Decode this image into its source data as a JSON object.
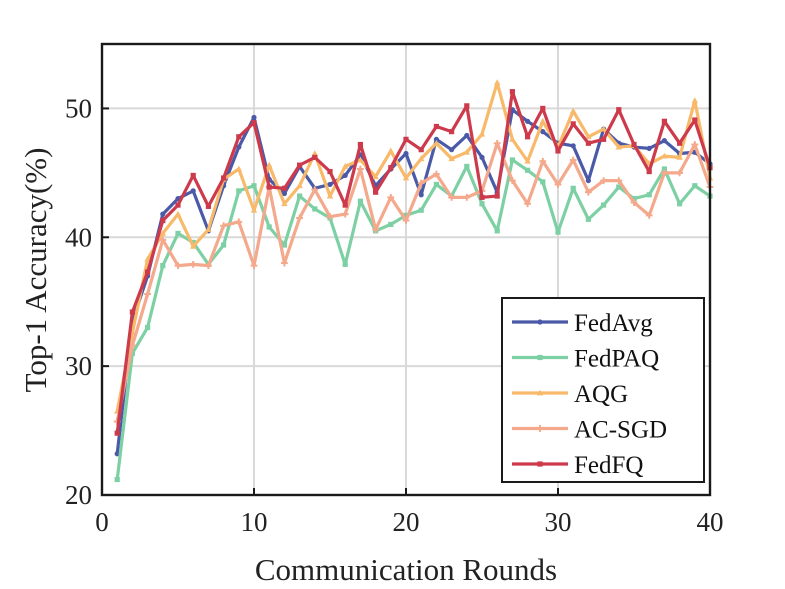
{
  "chart_data": {
    "type": "line",
    "title": "",
    "xlabel": "Communication Rounds",
    "ylabel": "Top-1 Accuracy(%)",
    "xlim": [
      0,
      40
    ],
    "ylim": [
      20,
      55
    ],
    "xticks": [
      0,
      10,
      20,
      30,
      40
    ],
    "yticks": [
      20,
      30,
      40,
      50
    ],
    "grid": true,
    "legend_position": "bottom-right",
    "x": [
      1,
      2,
      3,
      4,
      5,
      6,
      7,
      8,
      9,
      10,
      11,
      12,
      13,
      14,
      15,
      16,
      17,
      18,
      19,
      20,
      21,
      22,
      23,
      24,
      25,
      26,
      27,
      28,
      29,
      30,
      31,
      32,
      33,
      34,
      35,
      36,
      37,
      38,
      39,
      40
    ],
    "series": [
      {
        "name": "FedAvg",
        "color": "#4a5aa8",
        "marker": "circle",
        "values": [
          23.2,
          33.5,
          37.0,
          41.8,
          43.0,
          43.6,
          40.5,
          44.0,
          47.0,
          49.3,
          44.5,
          43.4,
          45.5,
          43.8,
          44.1,
          44.8,
          46.4,
          44.0,
          45.3,
          46.5,
          43.3,
          47.6,
          46.8,
          47.9,
          46.2,
          43.5,
          49.9,
          49.0,
          48.2,
          47.3,
          47.1,
          44.4,
          48.4,
          47.3,
          47.0,
          46.9,
          47.5,
          46.5,
          46.6,
          45.7
        ]
      },
      {
        "name": "FedPAQ",
        "color": "#7dd0a3",
        "marker": "square",
        "values": [
          21.2,
          31.0,
          33.0,
          37.8,
          40.3,
          39.6,
          37.9,
          39.4,
          43.6,
          44.0,
          40.8,
          39.4,
          43.2,
          42.2,
          41.5,
          37.9,
          42.8,
          40.5,
          41.0,
          41.7,
          42.1,
          44.1,
          43.2,
          45.5,
          42.6,
          40.5,
          46.0,
          45.2,
          44.3,
          40.4,
          43.8,
          41.4,
          42.5,
          43.9,
          43.0,
          43.3,
          45.3,
          42.6,
          44.0,
          43.2
        ]
      },
      {
        "name": "AQG",
        "color": "#f8b96a",
        "marker": "triangle",
        "values": [
          26.5,
          32.6,
          38.3,
          40.3,
          41.8,
          39.3,
          40.6,
          44.5,
          45.3,
          42.1,
          45.6,
          42.6,
          44.0,
          46.5,
          43.2,
          45.5,
          46.0,
          44.7,
          46.7,
          44.6,
          46.1,
          47.3,
          46.1,
          46.6,
          48.0,
          52.0,
          47.6,
          45.9,
          49.0,
          47.0,
          49.8,
          47.8,
          48.4,
          47.0,
          47.1,
          45.7,
          46.3,
          46.2,
          50.6,
          44.6
        ]
      },
      {
        "name": "AC-SGD",
        "color": "#f4a88c",
        "marker": "plus",
        "values": [
          25.7,
          31.6,
          35.6,
          39.8,
          37.8,
          37.9,
          37.8,
          40.9,
          41.2,
          37.8,
          43.9,
          38.0,
          41.5,
          43.7,
          41.6,
          41.8,
          45.3,
          40.6,
          43.1,
          41.3,
          44.2,
          44.9,
          43.1,
          43.1,
          43.6,
          47.3,
          44.4,
          42.6,
          45.9,
          44.1,
          46.0,
          43.5,
          44.4,
          44.4,
          42.7,
          41.7,
          45.0,
          45.0,
          47.2,
          43.9
        ]
      },
      {
        "name": "FedFQ",
        "color": "#cc3a4c",
        "marker": "square",
        "values": [
          24.8,
          34.2,
          37.3,
          41.3,
          42.5,
          44.8,
          42.4,
          44.6,
          47.8,
          48.9,
          43.9,
          43.8,
          45.6,
          46.2,
          45.1,
          42.5,
          47.2,
          43.5,
          45.4,
          47.6,
          46.8,
          48.6,
          48.2,
          50.2,
          43.1,
          43.2,
          51.3,
          47.8,
          50.0,
          46.7,
          48.8,
          47.3,
          47.6,
          49.9,
          47.2,
          45.1,
          49.0,
          47.3,
          49.1,
          45.4
        ]
      }
    ]
  }
}
